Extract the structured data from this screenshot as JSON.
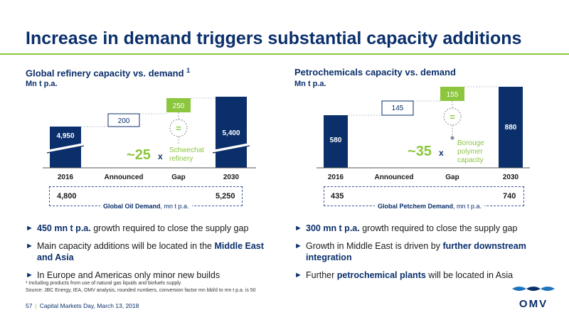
{
  "page": {
    "title": "Increase in demand triggers substantial capacity additions"
  },
  "left": {
    "title": "Global refinery capacity vs. demand",
    "footnote_mark": "1",
    "unit": "Mn t p.a.",
    "demand_start": "4,800",
    "demand_end": "5,250",
    "demand_caption_bold": "Global Oil Demand",
    "demand_caption_rest": ", mn t p.a.",
    "gap_multiplier_prefix": "~",
    "gap_multiplier_value": "25",
    "gap_multiplier_x": "x",
    "gap_note_line1": "Schwechat",
    "gap_note_line2": "refinery",
    "equals": "="
  },
  "right": {
    "title": "Petrochemicals capacity vs. demand",
    "unit": "Mn t p.a.",
    "demand_start": "435",
    "demand_end": "740",
    "demand_caption_bold": "Global Petchem Demand",
    "demand_caption_rest": ", mn t p.a.",
    "gap_multiplier_prefix": "~",
    "gap_multiplier_value": "35",
    "gap_multiplier_x": "x",
    "gap_note_line1": "Borouge",
    "gap_note_line2": "polymer",
    "gap_note_line3": "capacity",
    "equals": "="
  },
  "chart_data": [
    {
      "type": "bar",
      "categories": [
        "2016",
        "Announced",
        "Gap",
        "2030"
      ],
      "values": [
        4950,
        200,
        250,
        5400
      ],
      "labels": [
        "4,950",
        "200",
        "250",
        "5,400"
      ],
      "title": "Global refinery capacity vs. demand",
      "ylabel": "Mn t p.a.",
      "colors": {
        "total": "#0a2f6b",
        "announced": "#ffffff",
        "gap": "#8cc63f"
      }
    },
    {
      "type": "bar",
      "categories": [
        "2016",
        "Announced",
        "Gap",
        "2030"
      ],
      "values": [
        580,
        145,
        155,
        880
      ],
      "labels": [
        "580",
        "145",
        "155",
        "880"
      ],
      "title": "Petrochemicals capacity vs. demand",
      "ylabel": "Mn t p.a.",
      "colors": {
        "total": "#0a2f6b",
        "announced": "#ffffff",
        "gap": "#8cc63f"
      }
    }
  ],
  "bullets_left": [
    {
      "bold": "450 mn t p.a.",
      "rest": " growth required to close the supply gap"
    },
    {
      "pre": "Main capacity additions will be located in the ",
      "bold": "Middle East and Asia"
    },
    {
      "pre": "In Europe and Americas only minor new builds"
    }
  ],
  "bullets_right": [
    {
      "bold": "300 mn t p.a.",
      "rest": " growth required to close the supply gap"
    },
    {
      "pre": "Growth in Middle East is driven by ",
      "bold": "further downstream integration"
    },
    {
      "pre": "Further ",
      "bold": "petrochemical plants",
      "rest": " will be located in Asia"
    }
  ],
  "footnotes": {
    "line1": "¹ Including products from use of natural gas liquids and biofuels supply",
    "line2": "Source: JBC Energy, IEA, OMV analysis, rounded numbers, conversion factor mn bbl/d to mn t p.a. is 50"
  },
  "footer": {
    "page_number": "57",
    "separator": "|",
    "event": "Capital Markets Day, March 13, 2018"
  },
  "logo": {
    "text": "OMV",
    "colors": {
      "navy": "#0a2f6b",
      "blue": "#1e73be"
    }
  },
  "colors": {
    "navy": "#0a2f6b",
    "green": "#8cc63f"
  }
}
